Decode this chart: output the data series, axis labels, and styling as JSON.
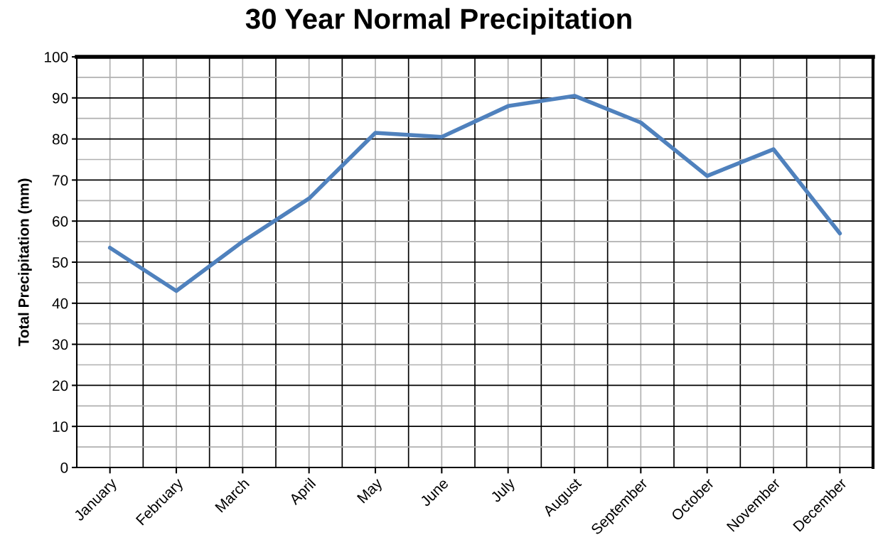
{
  "chart_data": {
    "type": "line",
    "title": "30 Year Normal Precipitation",
    "ylabel": "Total Precipitation (mm)",
    "categories": [
      "January",
      "February",
      "March",
      "April",
      "May",
      "June",
      "July",
      "August",
      "September",
      "October",
      "November",
      "December"
    ],
    "series": [
      {
        "color": "#4f81bd",
        "values": [
          53.5,
          43,
          55,
          65.5,
          81.5,
          80.5,
          88,
          90.5,
          84,
          71,
          77.5,
          57
        ]
      }
    ],
    "ylim": [
      0,
      100
    ],
    "yticks": [
      0,
      10,
      20,
      30,
      40,
      50,
      60,
      70,
      80,
      90,
      100
    ],
    "grid": true,
    "marker": "none",
    "line_style": "solid"
  }
}
